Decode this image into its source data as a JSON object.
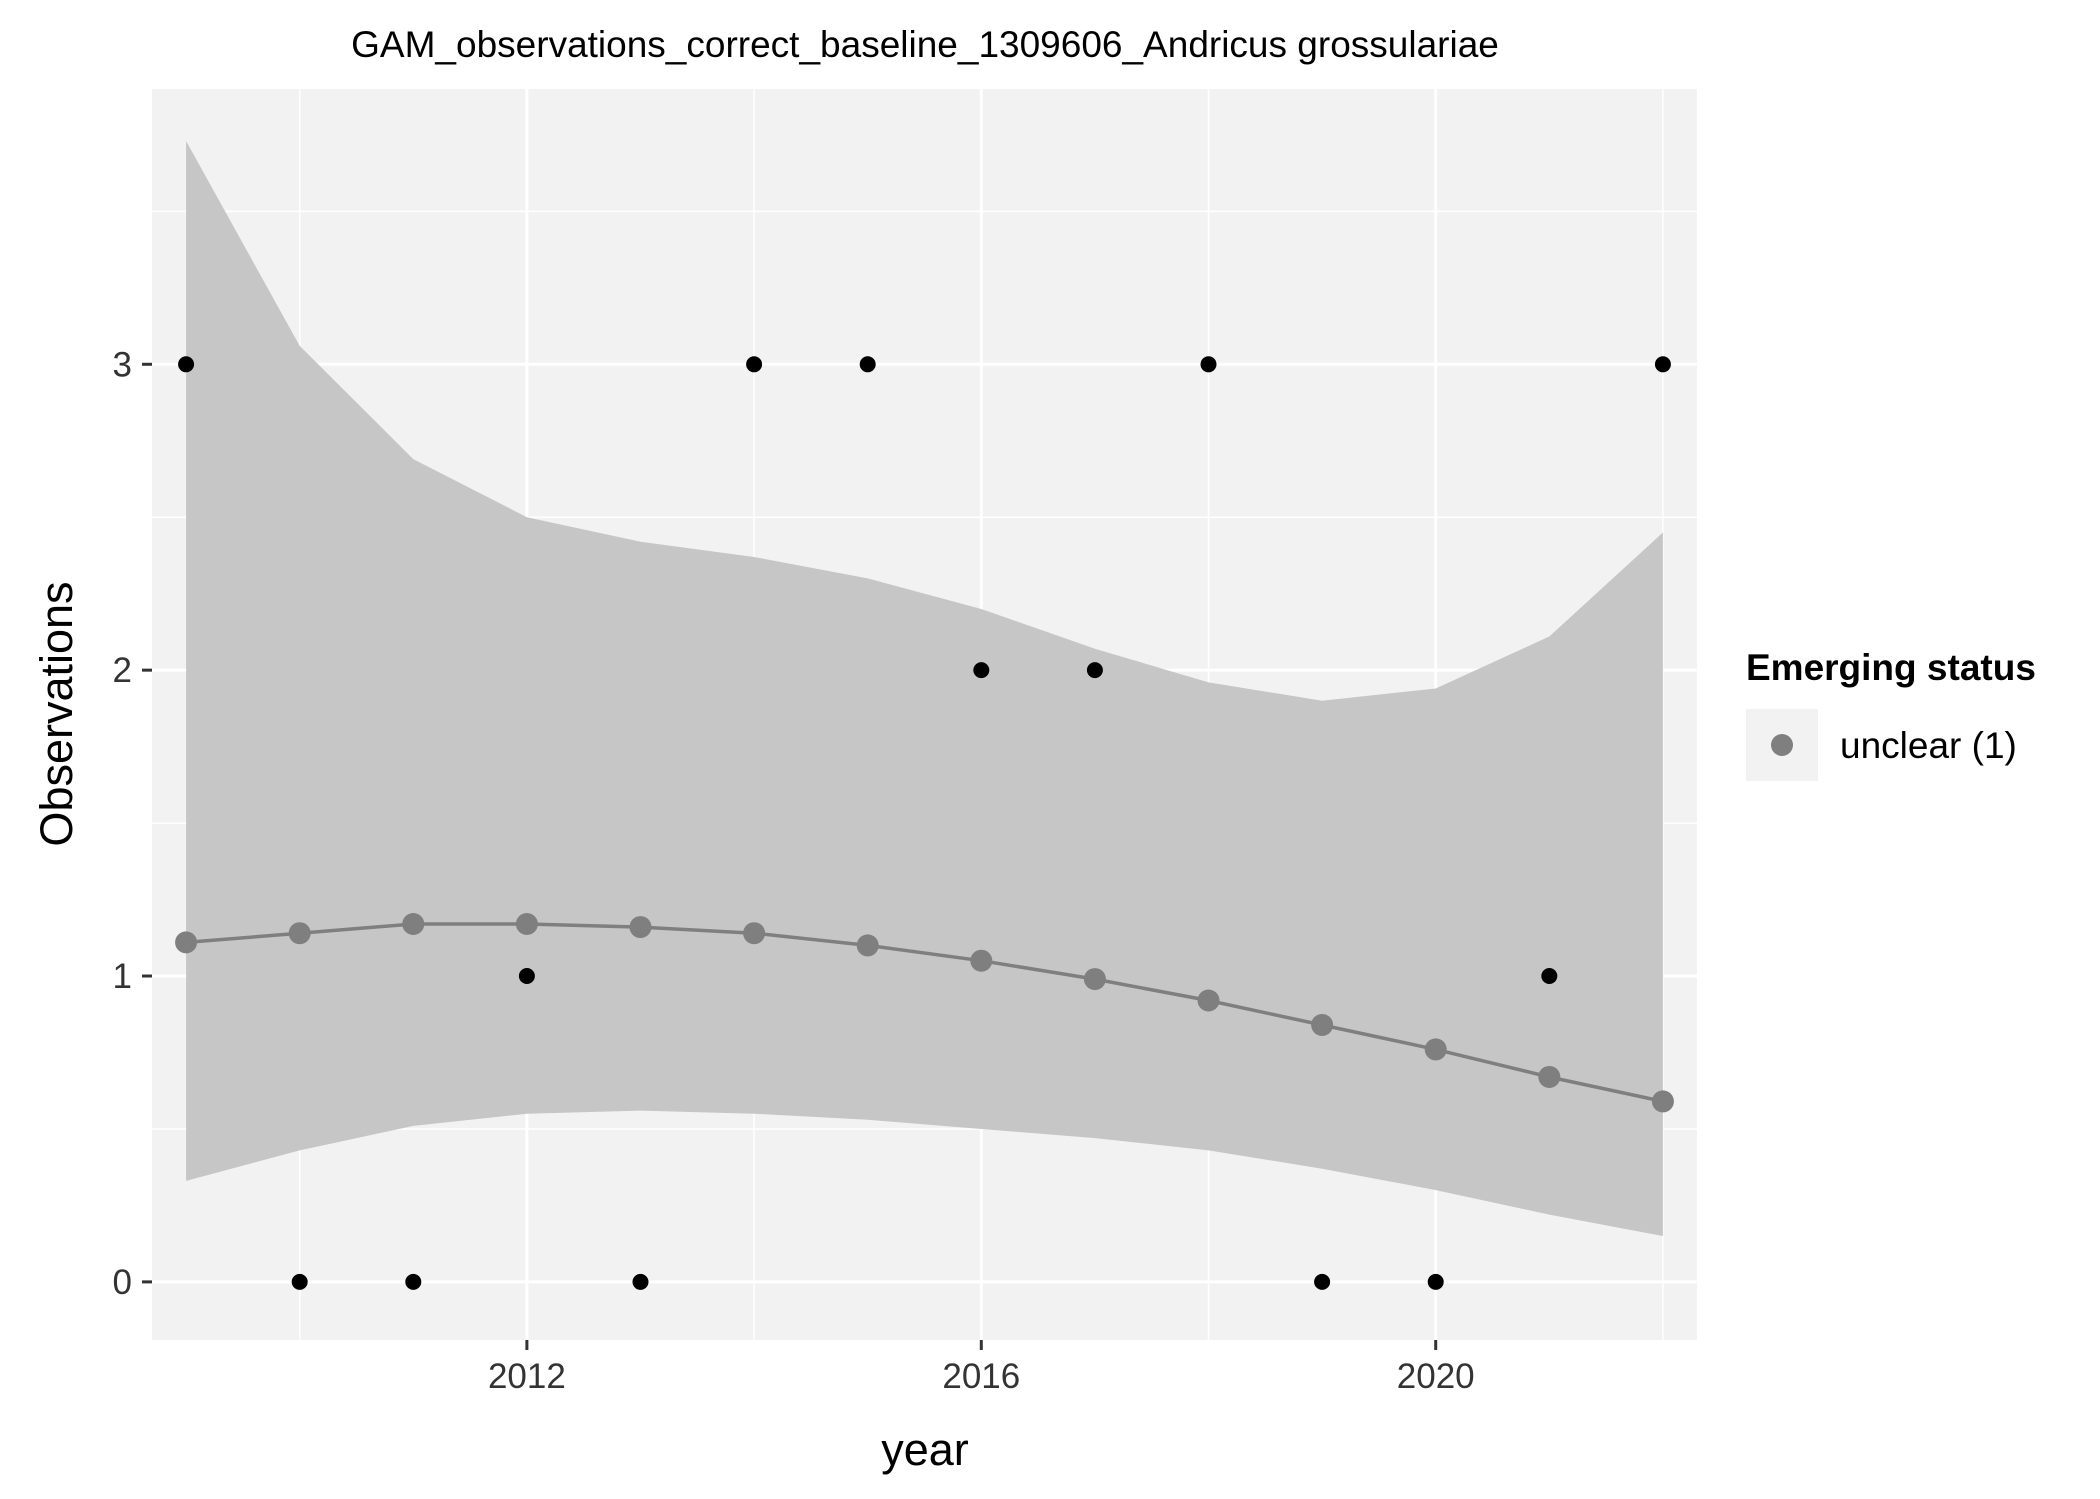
{
  "chart_data": {
    "type": "scatter",
    "title": "GAM_observations_correct_baseline_1309606_Andricus grossulariae",
    "xlabel": "year",
    "ylabel": "Observations",
    "xlim": [
      2008.7,
      2022.3
    ],
    "ylim": [
      -0.19,
      3.9
    ],
    "x_ticks": [
      2012,
      2016,
      2020
    ],
    "y_ticks": [
      0,
      1,
      2,
      3
    ],
    "grid": true,
    "legend": {
      "title": "Emerging status",
      "placement": "right",
      "entries": [
        {
          "label": "unclear (1)",
          "color": "#7f7f7f"
        }
      ]
    },
    "observations": {
      "x": [
        2009,
        2010,
        2011,
        2012,
        2013,
        2014,
        2015,
        2016,
        2017,
        2018,
        2019,
        2020,
        2021,
        2022
      ],
      "y": [
        3,
        0,
        0,
        1,
        0,
        3,
        3,
        2,
        2,
        3,
        0,
        0,
        1,
        3
      ]
    },
    "series": [
      {
        "name": "unclear (1)",
        "color": "#7f7f7f",
        "x": [
          2009,
          2010,
          2011,
          2012,
          2013,
          2014,
          2015,
          2016,
          2017,
          2018,
          2019,
          2020,
          2021,
          2022
        ],
        "fit": [
          1.11,
          1.14,
          1.17,
          1.17,
          1.16,
          1.14,
          1.1,
          1.05,
          0.99,
          0.92,
          0.84,
          0.76,
          0.67,
          0.59
        ],
        "lower": [
          0.33,
          0.43,
          0.51,
          0.55,
          0.56,
          0.55,
          0.53,
          0.5,
          0.47,
          0.43,
          0.37,
          0.3,
          0.22,
          0.15
        ],
        "upper": [
          3.73,
          3.06,
          2.69,
          2.5,
          2.42,
          2.37,
          2.3,
          2.2,
          2.07,
          1.96,
          1.9,
          1.94,
          2.11,
          2.45
        ]
      }
    ],
    "colors": {
      "panel_background": "#f2f2f2",
      "grid_major": "#ffffff",
      "ribbon": "#c6c6c6",
      "fit_line": "#7f7f7f",
      "points": "#000000"
    }
  }
}
